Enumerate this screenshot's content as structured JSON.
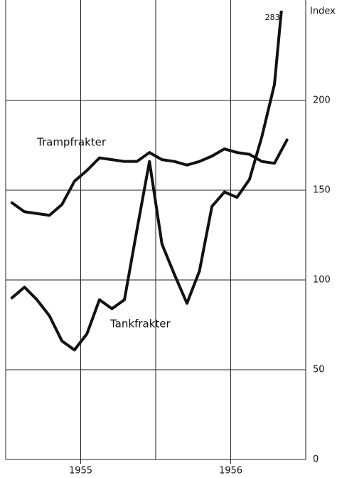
{
  "chart_data": {
    "type": "line",
    "y_axis_label": "Index",
    "x": [
      1955.0417,
      1955.125,
      1955.2083,
      1955.2917,
      1955.375,
      1955.4583,
      1955.5417,
      1955.625,
      1955.7083,
      1955.7917,
      1955.875,
      1955.9583,
      1956.0417,
      1956.125,
      1956.2083,
      1956.2917,
      1956.375,
      1956.4583,
      1956.5417,
      1956.625,
      1956.7083,
      1956.7917,
      1956.875
    ],
    "series": [
      {
        "name": "Trampfrakter",
        "color": "#111111",
        "values": [
          143,
          138,
          137,
          136,
          142,
          155,
          161,
          168,
          167,
          166,
          166,
          171,
          167,
          166,
          164,
          166,
          169,
          173,
          171,
          170,
          166,
          165,
          178
        ]
      },
      {
        "name": "Tankfrakter",
        "color": "#111111",
        "values": [
          90,
          96,
          89,
          80,
          66,
          61,
          70,
          89,
          84,
          89,
          128,
          166,
          120,
          103,
          87,
          105,
          141,
          149,
          146,
          156,
          180,
          209,
          283
        ],
        "value_labels": [
          null,
          null,
          null,
          null,
          null,
          null,
          null,
          null,
          null,
          null,
          null,
          null,
          null,
          null,
          null,
          null,
          null,
          null,
          null,
          null,
          null,
          null,
          "283"
        ]
      }
    ],
    "xlim": [
      1955,
      1957
    ],
    "xticks": [
      {
        "value": 1955.5,
        "label": "1955"
      },
      {
        "value": 1956.5,
        "label": "1956"
      }
    ],
    "xgrid": [
      1955,
      1955.5,
      1956,
      1956.5,
      1957
    ],
    "ylim": [
      0,
      250
    ],
    "yticks": [
      0,
      50,
      100,
      150,
      200
    ],
    "grid": true
  }
}
